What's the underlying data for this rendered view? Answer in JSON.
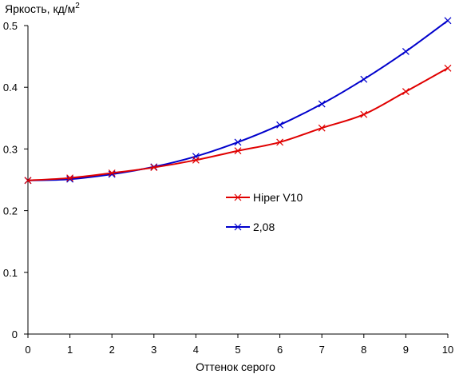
{
  "chart_data": {
    "type": "line",
    "ylabel": "Яркость, кд/м",
    "ylabel_sup": "2",
    "xlabel": "Оттенок серого",
    "xlim": [
      0,
      10
    ],
    "ylim": [
      0,
      0.5
    ],
    "x_ticks": [
      "0",
      "1",
      "2",
      "3",
      "4",
      "5",
      "6",
      "7",
      "8",
      "9",
      "10"
    ],
    "y_ticks": [
      "0",
      "0.1",
      "0.2",
      "0.3",
      "0.4",
      "0.5"
    ],
    "grid": false,
    "legend_position": "center",
    "x": [
      0,
      1,
      2,
      3,
      4,
      5,
      6,
      7,
      8,
      9,
      10
    ],
    "series": [
      {
        "name": "Hiper V10",
        "color": "#e00000",
        "values": [
          0.249,
          0.253,
          0.261,
          0.27,
          0.282,
          0.297,
          0.311,
          0.334,
          0.356,
          0.393,
          0.431
        ]
      },
      {
        "name": "2,08",
        "color": "#0000cc",
        "values": [
          0.249,
          0.251,
          0.259,
          0.271,
          0.288,
          0.311,
          0.339,
          0.373,
          0.413,
          0.458,
          0.508
        ]
      }
    ]
  }
}
